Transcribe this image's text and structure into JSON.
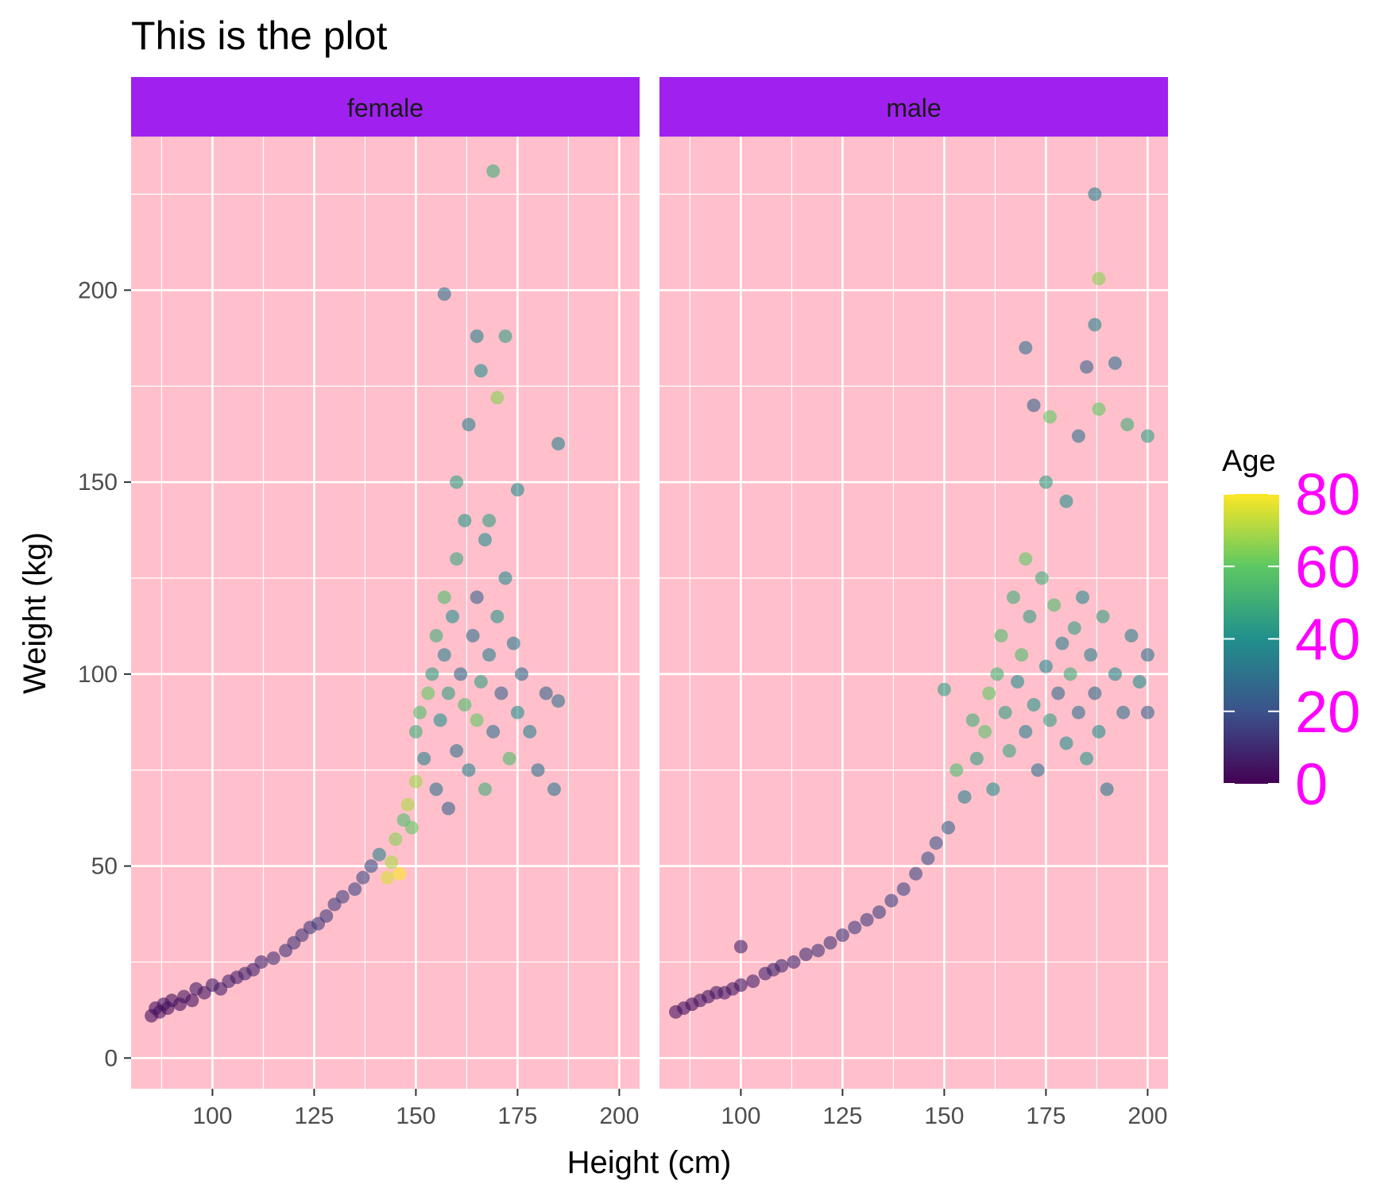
{
  "chart_data": {
    "type": "scatter",
    "title": "This is the plot",
    "xlabel": "Height (cm)",
    "ylabel": "Weight (kg)",
    "xlim": [
      80,
      205
    ],
    "ylim": [
      -8,
      240
    ],
    "x_ticks": [
      100,
      125,
      150,
      175,
      200
    ],
    "x_tick_labels": [
      "100",
      "125",
      "150",
      "175",
      "200"
    ],
    "y_ticks": [
      0,
      50,
      100,
      150,
      200
    ],
    "y_tick_labels": [
      "0",
      "50",
      "100",
      "150",
      "200"
    ],
    "grid": true,
    "facets": [
      "female",
      "male"
    ],
    "colors": {
      "panel_background": "#FFC0CB",
      "strip_background": "#A020F0",
      "grid": "#FFFFFF",
      "legend_label": "#FF00FF"
    },
    "legend": {
      "title": "Age",
      "placement": "right",
      "range": [
        0,
        80
      ],
      "ticks": [
        0,
        20,
        40,
        60,
        80
      ],
      "labels": [
        "0",
        "20",
        "40",
        "60",
        "80"
      ],
      "colormap": [
        "#440154",
        "#3B528B",
        "#21908C",
        "#5DC863",
        "#FDE725"
      ]
    },
    "series": [
      {
        "facet": "female",
        "points": [
          [
            85,
            11,
            3
          ],
          [
            86,
            13,
            4
          ],
          [
            87,
            12,
            3
          ],
          [
            88,
            14,
            5
          ],
          [
            89,
            13,
            3
          ],
          [
            90,
            15,
            4
          ],
          [
            92,
            14,
            3
          ],
          [
            93,
            16,
            5
          ],
          [
            95,
            15,
            4
          ],
          [
            96,
            18,
            6
          ],
          [
            98,
            17,
            5
          ],
          [
            100,
            19,
            6
          ],
          [
            102,
            18,
            7
          ],
          [
            104,
            20,
            8
          ],
          [
            106,
            21,
            7
          ],
          [
            108,
            22,
            9
          ],
          [
            110,
            23,
            8
          ],
          [
            112,
            25,
            10
          ],
          [
            115,
            26,
            11
          ],
          [
            118,
            28,
            12
          ],
          [
            120,
            30,
            12
          ],
          [
            122,
            32,
            13
          ],
          [
            124,
            34,
            13
          ],
          [
            126,
            35,
            14
          ],
          [
            128,
            37,
            14
          ],
          [
            130,
            40,
            15
          ],
          [
            132,
            42,
            16
          ],
          [
            135,
            44,
            17
          ],
          [
            137,
            47,
            18
          ],
          [
            139,
            50,
            20
          ],
          [
            141,
            53,
            35
          ],
          [
            143,
            47,
            75
          ],
          [
            144,
            51,
            70
          ],
          [
            145,
            57,
            65
          ],
          [
            146,
            48,
            80
          ],
          [
            147,
            62,
            55
          ],
          [
            148,
            66,
            70
          ],
          [
            149,
            60,
            60
          ],
          [
            150,
            72,
            68
          ],
          [
            150,
            85,
            50
          ],
          [
            151,
            90,
            55
          ],
          [
            152,
            78,
            35
          ],
          [
            153,
            95,
            60
          ],
          [
            154,
            100,
            45
          ],
          [
            155,
            70,
            30
          ],
          [
            155,
            110,
            50
          ],
          [
            156,
            88,
            40
          ],
          [
            157,
            120,
            55
          ],
          [
            157,
            105,
            35
          ],
          [
            158,
            65,
            25
          ],
          [
            158,
            95,
            45
          ],
          [
            159,
            115,
            40
          ],
          [
            160,
            80,
            30
          ],
          [
            160,
            130,
            48
          ],
          [
            161,
            100,
            28
          ],
          [
            162,
            92,
            55
          ],
          [
            162,
            140,
            42
          ],
          [
            163,
            75,
            35
          ],
          [
            164,
            110,
            30
          ],
          [
            165,
            120,
            25
          ],
          [
            165,
            88,
            60
          ],
          [
            166,
            98,
            45
          ],
          [
            167,
            70,
            50
          ],
          [
            167,
            135,
            40
          ],
          [
            168,
            105,
            35
          ],
          [
            169,
            85,
            30
          ],
          [
            170,
            115,
            42
          ],
          [
            171,
            95,
            25
          ],
          [
            172,
            125,
            38
          ],
          [
            173,
            78,
            55
          ],
          [
            174,
            108,
            33
          ],
          [
            175,
            90,
            40
          ],
          [
            176,
            100,
            28
          ],
          [
            178,
            85,
            35
          ],
          [
            180,
            75,
            30
          ],
          [
            182,
            95,
            25
          ],
          [
            184,
            70,
            32
          ],
          [
            160,
            150,
            45
          ],
          [
            157,
            199,
            30
          ],
          [
            165,
            188,
            35
          ],
          [
            166,
            179,
            40
          ],
          [
            172,
            188,
            45
          ],
          [
            169,
            231,
            50
          ],
          [
            170,
            172,
            65
          ],
          [
            163,
            165,
            35
          ],
          [
            168,
            140,
            45
          ],
          [
            175,
            148,
            38
          ],
          [
            185,
            93,
            30
          ],
          [
            185,
            160,
            35
          ]
        ]
      },
      {
        "facet": "male",
        "points": [
          [
            84,
            12,
            3
          ],
          [
            86,
            13,
            4
          ],
          [
            88,
            14,
            3
          ],
          [
            90,
            15,
            5
          ],
          [
            92,
            16,
            4
          ],
          [
            94,
            17,
            5
          ],
          [
            96,
            17,
            6
          ],
          [
            98,
            18,
            5
          ],
          [
            100,
            19,
            6
          ],
          [
            100,
            29,
            8
          ],
          [
            103,
            20,
            7
          ],
          [
            106,
            22,
            8
          ],
          [
            108,
            23,
            8
          ],
          [
            110,
            24,
            9
          ],
          [
            113,
            25,
            10
          ],
          [
            116,
            27,
            11
          ],
          [
            119,
            28,
            12
          ],
          [
            122,
            30,
            12
          ],
          [
            125,
            32,
            13
          ],
          [
            128,
            34,
            14
          ],
          [
            131,
            36,
            14
          ],
          [
            134,
            38,
            15
          ],
          [
            137,
            41,
            16
          ],
          [
            140,
            44,
            17
          ],
          [
            143,
            48,
            18
          ],
          [
            146,
            52,
            20
          ],
          [
            148,
            56,
            22
          ],
          [
            150,
            96,
            45
          ],
          [
            151,
            60,
            25
          ],
          [
            153,
            75,
            55
          ],
          [
            155,
            68,
            35
          ],
          [
            157,
            88,
            50
          ],
          [
            158,
            78,
            45
          ],
          [
            160,
            85,
            58
          ],
          [
            161,
            95,
            60
          ],
          [
            162,
            70,
            40
          ],
          [
            163,
            100,
            52
          ],
          [
            164,
            110,
            55
          ],
          [
            165,
            90,
            45
          ],
          [
            166,
            80,
            48
          ],
          [
            167,
            120,
            50
          ],
          [
            168,
            98,
            40
          ],
          [
            169,
            105,
            55
          ],
          [
            170,
            85,
            35
          ],
          [
            170,
            130,
            60
          ],
          [
            171,
            115,
            45
          ],
          [
            172,
            92,
            42
          ],
          [
            173,
            75,
            30
          ],
          [
            174,
            125,
            50
          ],
          [
            175,
            102,
            38
          ],
          [
            176,
            88,
            45
          ],
          [
            177,
            118,
            55
          ],
          [
            178,
            95,
            28
          ],
          [
            179,
            108,
            35
          ],
          [
            180,
            82,
            40
          ],
          [
            181,
            100,
            50
          ],
          [
            182,
            112,
            45
          ],
          [
            183,
            90,
            30
          ],
          [
            184,
            120,
            38
          ],
          [
            185,
            78,
            42
          ],
          [
            186,
            105,
            35
          ],
          [
            187,
            95,
            28
          ],
          [
            188,
            85,
            40
          ],
          [
            189,
            115,
            45
          ],
          [
            190,
            70,
            32
          ],
          [
            192,
            100,
            38
          ],
          [
            194,
            90,
            30
          ],
          [
            196,
            110,
            35
          ],
          [
            198,
            98,
            40
          ],
          [
            200,
            105,
            30
          ],
          [
            200,
            90,
            25
          ],
          [
            187,
            225,
            35
          ],
          [
            188,
            203,
            65
          ],
          [
            187,
            191,
            35
          ],
          [
            192,
            181,
            30
          ],
          [
            185,
            180,
            25
          ],
          [
            170,
            185,
            30
          ],
          [
            183,
            162,
            30
          ],
          [
            188,
            169,
            60
          ],
          [
            195,
            165,
            50
          ],
          [
            200,
            162,
            45
          ],
          [
            176,
            167,
            60
          ],
          [
            172,
            170,
            25
          ],
          [
            180,
            145,
            40
          ],
          [
            175,
            150,
            45
          ]
        ]
      }
    ]
  }
}
